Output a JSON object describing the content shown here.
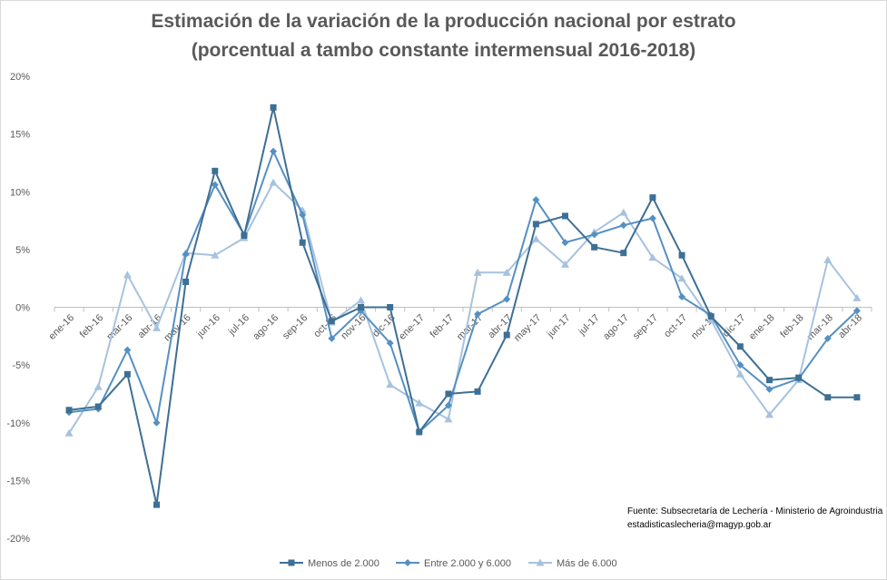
{
  "chart_data": {
    "type": "line",
    "title": "Estimación de la variación de la producción nacional por estrato",
    "subtitle": "(porcentual a tambo constante intermensual 2016-2018)",
    "categories": [
      "ene-16",
      "feb-16",
      "mar-16",
      "abr-16",
      "may-16",
      "jun-16",
      "jul-16",
      "ago-16",
      "sep-16",
      "oct-16",
      "nov-16",
      "dic-16",
      "ene-17",
      "feb-17",
      "mar-17",
      "abr-17",
      "may-17",
      "jun-17",
      "jul-17",
      "ago-17",
      "sep-17",
      "oct-17",
      "nov-17",
      "dic-17",
      "ene-18",
      "feb-18",
      "mar-18",
      "abr-18"
    ],
    "ylim": [
      -20,
      20
    ],
    "yticks": [
      -20,
      -15,
      -10,
      -5,
      0,
      5,
      10,
      15,
      20
    ],
    "ytick_labels": [
      "-20%",
      "-15%",
      "-10%",
      "-5%",
      "0%",
      "5%",
      "10%",
      "15%",
      "20%"
    ],
    "legend_position": "bottom",
    "series": [
      {
        "name": "Menos de 2.000",
        "color": "#3e6f94",
        "marker": "square",
        "values": [
          -8.9,
          -8.6,
          -5.8,
          -17.1,
          2.2,
          11.8,
          6.2,
          17.3,
          5.6,
          -1.2,
          0.0,
          0.0,
          -10.8,
          -7.5,
          -7.3,
          -2.4,
          7.2,
          7.9,
          5.2,
          4.7,
          9.5,
          4.5,
          -0.8,
          -3.4,
          -6.3,
          -6.1,
          -7.8,
          -7.8
        ]
      },
      {
        "name": "Entre 2.000 y 6.000",
        "color": "#5590c2",
        "marker": "diamond",
        "values": [
          -9.1,
          -8.8,
          -3.7,
          -10.0,
          4.6,
          10.6,
          6.3,
          13.5,
          8.0,
          -2.7,
          -0.3,
          -3.1,
          -10.8,
          -8.5,
          -0.6,
          0.7,
          9.3,
          5.6,
          6.3,
          7.1,
          7.7,
          0.9,
          -0.7,
          -5.0,
          -7.1,
          -6.2,
          -2.7,
          -0.3
        ]
      },
      {
        "name": "Más de 6.000",
        "color": "#a7c2df",
        "marker": "triangle",
        "values": [
          -10.9,
          -6.9,
          2.8,
          -1.8,
          4.7,
          4.5,
          6.0,
          10.8,
          8.4,
          -1.3,
          0.6,
          -6.7,
          -8.3,
          -9.7,
          3.0,
          3.0,
          5.9,
          3.7,
          6.5,
          8.2,
          4.3,
          2.5,
          -1.1,
          -5.8,
          -9.3,
          -6.3,
          4.1,
          0.8
        ]
      }
    ],
    "annotation_lines": [
      "Fuente: Subsecretaría de Lechería - Ministerio de Agroindustria",
      "estadisticaslecheria@magyp.gob.ar"
    ]
  }
}
